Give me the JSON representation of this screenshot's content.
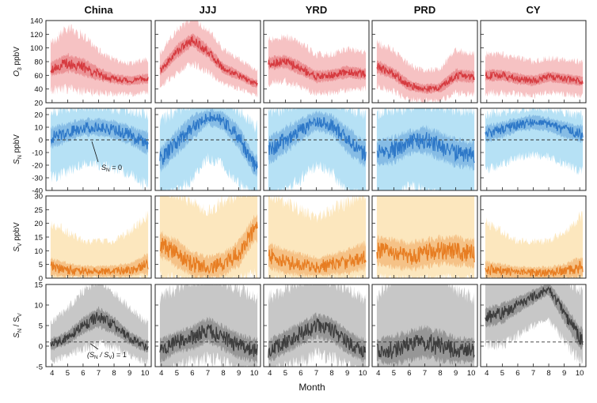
{
  "figure": {
    "xlabel": "Month",
    "colors": {
      "red": "#d63a3f",
      "red_band": "#f4b7b9",
      "blue": "#2e78c8",
      "blue_band": "#a9dcf3",
      "orange": "#e77d22",
      "orange_band": "#fce3b3",
      "gray": "#3d3d3d",
      "gray_band": "#bdbdbd"
    }
  },
  "chart_data": {
    "type": "line",
    "grid": false,
    "legend": "none",
    "columns": [
      "China",
      "JJJ",
      "YRD",
      "PRD",
      "CY"
    ],
    "x": {
      "label": "Month",
      "range": [
        3.6,
        10.4
      ],
      "ticks": [
        "4",
        "5",
        "6",
        "7",
        "8",
        "9",
        "10"
      ]
    },
    "rows": [
      {
        "id": "o3",
        "ylabel_main": "O",
        "ylabel_sub": "3",
        "ylabel_tail": " ppbV",
        "ylim": [
          20,
          140
        ],
        "yticks": [
          "20",
          "40",
          "60",
          "80",
          "100",
          "120",
          "140"
        ],
        "line_color": "#d63a3f",
        "band_color": "#f4b7b9",
        "series": {
          "China": {
            "months": [
              4,
              5,
              6,
              7,
              8,
              9,
              10
            ],
            "values": [
              70,
              78,
              72,
              62,
              55,
              52,
              55
            ],
            "band_lo": [
              45,
              50,
              45,
              40,
              38,
              36,
              40
            ],
            "band_hi": [
              100,
              120,
              110,
              90,
              78,
              72,
              78
            ]
          },
          "JJJ": {
            "months": [
              4,
              5,
              6,
              7,
              8,
              9,
              10
            ],
            "values": [
              68,
              95,
              112,
              95,
              70,
              60,
              48
            ],
            "band_lo": [
              50,
              70,
              85,
              70,
              52,
              45,
              35
            ],
            "band_hi": [
              90,
              120,
              138,
              120,
              92,
              80,
              65
            ]
          },
          "YRD": {
            "months": [
              4,
              5,
              6,
              7,
              8,
              9,
              10
            ],
            "values": [
              78,
              80,
              70,
              58,
              60,
              65,
              62
            ],
            "band_lo": [
              55,
              58,
              48,
              40,
              40,
              45,
              45
            ],
            "band_hi": [
              105,
              110,
              100,
              85,
              85,
              92,
              88
            ]
          },
          "PRD": {
            "months": [
              4,
              5,
              6,
              7,
              8,
              9,
              10
            ],
            "values": [
              72,
              62,
              45,
              40,
              42,
              60,
              58
            ],
            "band_lo": [
              50,
              42,
              30,
              28,
              28,
              40,
              38
            ],
            "band_hi": [
              100,
              90,
              70,
              62,
              65,
              90,
              85
            ]
          },
          "CY": {
            "months": [
              4,
              5,
              6,
              7,
              8,
              9,
              10
            ],
            "values": [
              60,
              60,
              55,
              52,
              58,
              55,
              52
            ],
            "band_lo": [
              40,
              40,
              38,
              35,
              40,
              38,
              35
            ],
            "band_hi": [
              85,
              85,
              80,
              75,
              80,
              78,
              75
            ]
          }
        }
      },
      {
        "id": "sn",
        "ylabel_main": "S",
        "ylabel_sub": "N",
        "ylabel_tail": " ppbV",
        "ylim": [
          -40,
          25
        ],
        "yticks": [
          "-40",
          "-30",
          "-20",
          "-10",
          "0",
          "10",
          "20"
        ],
        "line_color": "#2e78c8",
        "band_color": "#a9dcf3",
        "reference": 0,
        "series": {
          "China": {
            "months": [
              4,
              5,
              6,
              7,
              8,
              9,
              10
            ],
            "values": [
              2,
              6,
              10,
              10,
              8,
              4,
              -2
            ],
            "band_lo": [
              -25,
              -20,
              -15,
              -15,
              -18,
              -22,
              -30
            ],
            "band_hi": [
              18,
              20,
              22,
              22,
              20,
              18,
              15
            ]
          },
          "JJJ": {
            "months": [
              4,
              5,
              6,
              7,
              8,
              9,
              10
            ],
            "values": [
              -15,
              -2,
              10,
              18,
              15,
              2,
              -20
            ],
            "band_lo": [
              -40,
              -35,
              -25,
              -10,
              -15,
              -30,
              -40
            ],
            "band_hi": [
              10,
              18,
              24,
              25,
              24,
              18,
              5
            ]
          },
          "YRD": {
            "months": [
              4,
              5,
              6,
              7,
              8,
              9,
              10
            ],
            "values": [
              -8,
              0,
              8,
              15,
              12,
              0,
              -10
            ],
            "band_lo": [
              -40,
              -35,
              -25,
              -15,
              -20,
              -35,
              -40
            ],
            "band_hi": [
              15,
              20,
              24,
              25,
              24,
              20,
              15
            ]
          },
          "PRD": {
            "months": [
              4,
              5,
              6,
              7,
              8,
              9,
              10
            ],
            "values": [
              -10,
              -8,
              -2,
              0,
              -5,
              -10,
              -12
            ],
            "band_lo": [
              -40,
              -40,
              -30,
              -35,
              -40,
              -40,
              -40
            ],
            "band_hi": [
              15,
              18,
              20,
              22,
              20,
              18,
              18
            ]
          },
          "CY": {
            "months": [
              4,
              5,
              6,
              7,
              8,
              9,
              10
            ],
            "values": [
              5,
              8,
              12,
              14,
              12,
              8,
              5
            ],
            "band_lo": [
              -20,
              -15,
              -10,
              -8,
              -10,
              -15,
              -20
            ],
            "band_hi": [
              15,
              18,
              20,
              22,
              20,
              18,
              15
            ]
          }
        },
        "annotation": {
          "panel": "China",
          "text_main": "S",
          "text_sub": "N",
          "text_tail": " = 0"
        }
      },
      {
        "id": "sv",
        "ylabel_main": "S",
        "ylabel_sub": "V",
        "ylabel_tail": " ppbV",
        "ylim": [
          0,
          30
        ],
        "yticks": [
          "0",
          "5",
          "10",
          "15",
          "20",
          "25",
          "30"
        ],
        "line_color": "#e77d22",
        "band_color": "#fce3b3",
        "series": {
          "China": {
            "months": [
              4,
              5,
              6,
              7,
              8,
              9,
              10
            ],
            "values": [
              4,
              3,
              2.5,
              2.5,
              2.5,
              3,
              5
            ],
            "band_lo": [
              1,
              1,
              1,
              1,
              1,
              1,
              1
            ],
            "band_hi": [
              18,
              15,
              12,
              12,
              12,
              15,
              20
            ]
          },
          "JJJ": {
            "months": [
              4,
              5,
              6,
              7,
              8,
              9,
              10
            ],
            "values": [
              12,
              9,
              5,
              4,
              5,
              9,
              18
            ],
            "band_lo": [
              3,
              2,
              1,
              1,
              1,
              2,
              4
            ],
            "band_hi": [
              30,
              28,
              25,
              22,
              25,
              28,
              30
            ]
          },
          "YRD": {
            "months": [
              4,
              5,
              6,
              7,
              8,
              9,
              10
            ],
            "values": [
              8,
              6,
              5,
              4,
              5,
              6,
              8
            ],
            "band_lo": [
              2,
              1,
              1,
              1,
              1,
              1,
              2
            ],
            "band_hi": [
              28,
              25,
              22,
              20,
              22,
              25,
              28
            ]
          },
          "PRD": {
            "months": [
              4,
              5,
              6,
              7,
              8,
              9,
              10
            ],
            "values": [
              10,
              9,
              8,
              9,
              10,
              10,
              9
            ],
            "band_lo": [
              2,
              2,
              2,
              2,
              2,
              2,
              2
            ],
            "band_hi": [
              30,
              30,
              30,
              30,
              30,
              30,
              30
            ]
          },
          "CY": {
            "months": [
              4,
              5,
              6,
              7,
              8,
              9,
              10
            ],
            "values": [
              3,
              2.5,
              2,
              2,
              2,
              2.5,
              4
            ],
            "band_lo": [
              0.5,
              0.5,
              0.5,
              0.5,
              0.5,
              0.5,
              0.5
            ],
            "band_hi": [
              18,
              15,
              12,
              12,
              12,
              15,
              20
            ]
          }
        }
      },
      {
        "id": "ratio",
        "ylabel_main": "S",
        "ylabel_sub": "N",
        "ylabel_tail": " / S",
        "ylabel_sub2": "V",
        "ylim": [
          -5,
          15
        ],
        "yticks": [
          "-5",
          "0",
          "5",
          "10",
          "15"
        ],
        "line_color": "#3d3d3d",
        "band_color": "#bdbdbd",
        "reference": 1,
        "series": {
          "China": {
            "months": [
              4,
              5,
              6,
              7,
              8,
              9,
              10
            ],
            "values": [
              0.5,
              2,
              5,
              7,
              5,
              2,
              0
            ],
            "band_lo": [
              -3,
              -1,
              1,
              2,
              1,
              -1,
              -3
            ],
            "band_hi": [
              5,
              8,
              12,
              15,
              12,
              8,
              5
            ]
          },
          "JJJ": {
            "months": [
              4,
              5,
              6,
              7,
              8,
              9,
              10
            ],
            "values": [
              -1,
              1,
              2,
              4,
              2,
              0,
              -1
            ],
            "band_lo": [
              -5,
              -3,
              -2,
              -1,
              -2,
              -4,
              -5
            ],
            "band_hi": [
              10,
              12,
              14,
              15,
              14,
              12,
              10
            ]
          },
          "YRD": {
            "months": [
              4,
              5,
              6,
              7,
              8,
              9,
              10
            ],
            "values": [
              -1,
              1,
              3,
              5,
              4,
              1,
              -1
            ],
            "band_lo": [
              -5,
              -3,
              -2,
              0,
              -1,
              -3,
              -5
            ],
            "band_hi": [
              10,
              12,
              14,
              15,
              14,
              12,
              10
            ]
          },
          "PRD": {
            "months": [
              4,
              5,
              6,
              7,
              8,
              9,
              10
            ],
            "values": [
              -1,
              -1,
              0,
              1,
              0,
              -1,
              -1
            ],
            "band_lo": [
              -5,
              -5,
              -5,
              -5,
              -5,
              -5,
              -5
            ],
            "band_hi": [
              10,
              15,
              15,
              15,
              15,
              12,
              10
            ]
          },
          "CY": {
            "months": [
              4,
              5,
              6,
              7,
              8,
              9,
              10
            ],
            "values": [
              7,
              8,
              10,
              12,
              14,
              8,
              2
            ],
            "band_lo": [
              2,
              2,
              4,
              6,
              7,
              3,
              -2
            ],
            "band_hi": [
              15,
              15,
              15,
              15,
              15,
              15,
              12
            ]
          }
        },
        "annotation": {
          "panel": "China",
          "text_pre": "(S",
          "text_sub": "N",
          "text_mid": " / S",
          "text_sub2": "V",
          "text_tail": ") = 1"
        }
      }
    ]
  }
}
